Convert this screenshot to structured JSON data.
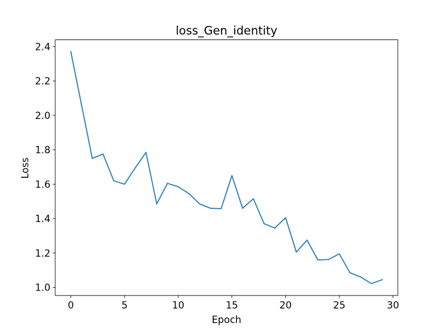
{
  "chart_data": {
    "type": "line",
    "title": "loss_Gen_identity",
    "xlabel": "Epoch",
    "ylabel": "Loss",
    "xlim": [
      -1.45,
      30.45
    ],
    "ylim": [
      0.953,
      2.439
    ],
    "xticks": [
      0,
      5,
      10,
      15,
      20,
      25,
      30
    ],
    "xtick_labels": [
      "0",
      "5",
      "10",
      "15",
      "20",
      "25",
      "30"
    ],
    "yticks": [
      1.0,
      1.2,
      1.4,
      1.6,
      1.8,
      2.0,
      2.2,
      2.4
    ],
    "ytick_labels": [
      "1.0",
      "1.2",
      "1.4",
      "1.6",
      "1.8",
      "2.0",
      "2.2",
      "2.4"
    ],
    "grid": false,
    "series": [
      {
        "color": "#1f77b4",
        "x": [
          0,
          1,
          2,
          3,
          4,
          5,
          6,
          7,
          8,
          9,
          10,
          11,
          12,
          13,
          14,
          15,
          16,
          17,
          18,
          19,
          20,
          21,
          22,
          23,
          24,
          25,
          26,
          27,
          28,
          29
        ],
        "y": [
          2.37,
          2.06,
          1.75,
          1.775,
          1.62,
          1.6,
          1.695,
          1.785,
          1.485,
          1.605,
          1.585,
          1.545,
          1.485,
          1.46,
          1.458,
          1.65,
          1.46,
          1.515,
          1.37,
          1.345,
          1.405,
          1.205,
          1.275,
          1.16,
          1.162,
          1.195,
          1.085,
          1.06,
          1.022,
          1.045
        ]
      }
    ]
  }
}
